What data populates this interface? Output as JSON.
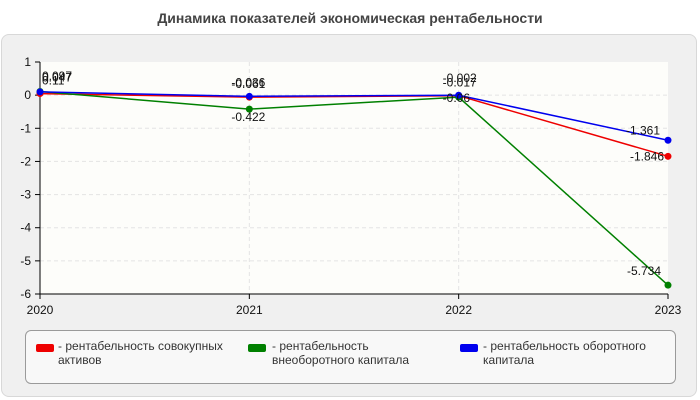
{
  "chart_data": {
    "type": "line",
    "title": "Динамика показателей экономическая рентабельности",
    "x": [
      "2020",
      "2021",
      "2022",
      "2023"
    ],
    "yticks": [
      1,
      0,
      -1,
      -2,
      -3,
      -4,
      -5,
      -6
    ],
    "ylim": [
      -6,
      1
    ],
    "grid": true,
    "legend_placement": "bottom",
    "series": [
      {
        "name": "рентабельность совокупных активов",
        "color": "#ee0000",
        "values": [
          0.047,
          -0.061,
          -0.017,
          -1.846
        ],
        "labels": [
          "0.047",
          "-0.061",
          "-0.017",
          "-1.846"
        ]
      },
      {
        "name": "рентабельность внеоборотного капитала",
        "color": "#008000",
        "values": [
          0.11,
          -0.422,
          -0.06,
          -5.734
        ],
        "labels": [
          "0.11",
          "-0.422",
          "-0.06",
          "-5.734"
        ]
      },
      {
        "name": "рентабельность оборотного капитала",
        "color": "#0000ee",
        "values": [
          0.097,
          -0.036,
          -0.002,
          -1.361
        ],
        "labels": [
          "0.097",
          "-0.036",
          "-0.002",
          "-1.361"
        ]
      }
    ]
  }
}
